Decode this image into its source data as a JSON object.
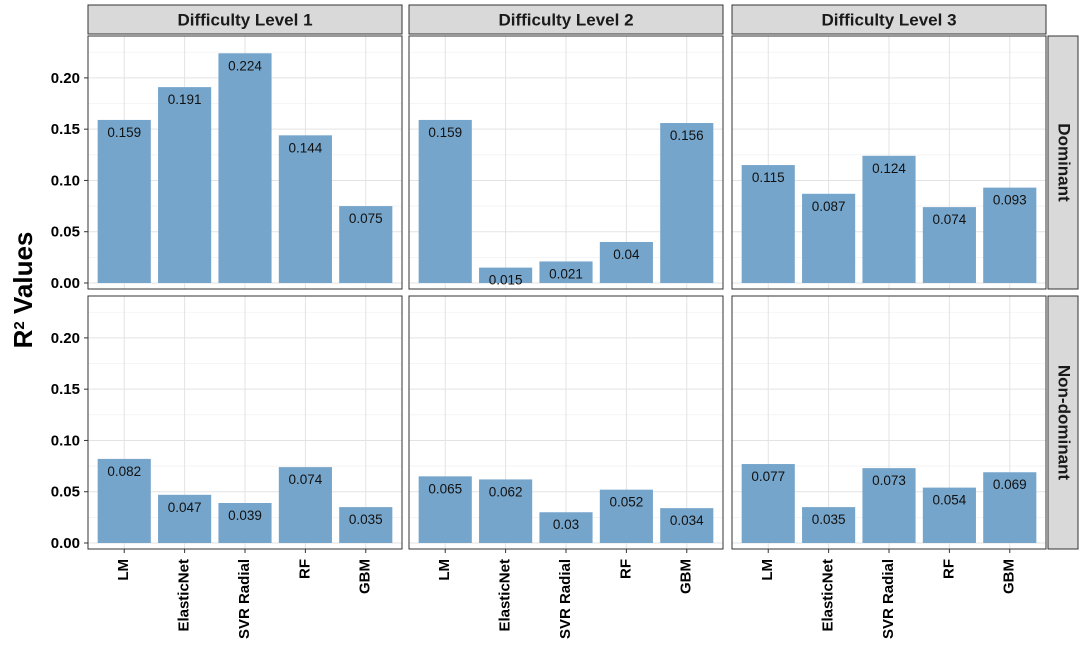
{
  "chart_data": {
    "type": "bar",
    "ylabel_main": "R",
    "ylabel_sup": "2",
    "ylabel_rest": " Values",
    "xlabel": "",
    "ylim": [
      0,
      0.235
    ],
    "yticks": [
      0.0,
      0.05,
      0.1,
      0.15,
      0.2
    ],
    "ytick_labels": [
      "0.00",
      "0.05",
      "0.10",
      "0.15",
      "0.20"
    ],
    "categories": [
      "LM",
      "ElasticNet",
      "SVR Radial",
      "RF",
      "GBM"
    ],
    "columns": [
      "Difficulty Level 1",
      "Difficulty Level 2",
      "Difficulty Level 3"
    ],
    "rows": [
      "Dominant",
      "Non-dominant"
    ],
    "bar_color": "#76a5cb",
    "strip_color": "#d9d9d9",
    "panels": [
      {
        "row": "Dominant",
        "column": "Difficulty Level 1",
        "values": [
          0.159,
          0.191,
          0.224,
          0.144,
          0.075
        ],
        "labels": [
          "0.159",
          "0.191",
          "0.224",
          "0.144",
          "0.075"
        ]
      },
      {
        "row": "Dominant",
        "column": "Difficulty Level 2",
        "values": [
          0.159,
          0.015,
          0.021,
          0.04,
          0.156
        ],
        "labels": [
          "0.159",
          "0.015",
          "0.021",
          "0.04",
          "0.156"
        ]
      },
      {
        "row": "Dominant",
        "column": "Difficulty Level 3",
        "values": [
          0.115,
          0.087,
          0.124,
          0.074,
          0.093
        ],
        "labels": [
          "0.115",
          "0.087",
          "0.124",
          "0.074",
          "0.093"
        ]
      },
      {
        "row": "Non-dominant",
        "column": "Difficulty Level 1",
        "values": [
          0.082,
          0.047,
          0.039,
          0.074,
          0.035
        ],
        "labels": [
          "0.082",
          "0.047",
          "0.039",
          "0.074",
          "0.035"
        ]
      },
      {
        "row": "Non-dominant",
        "column": "Difficulty Level 2",
        "values": [
          0.065,
          0.062,
          0.03,
          0.052,
          0.034
        ],
        "labels": [
          "0.065",
          "0.062",
          "0.03",
          "0.052",
          "0.034"
        ]
      },
      {
        "row": "Non-dominant",
        "column": "Difficulty Level 3",
        "values": [
          0.077,
          0.035,
          0.073,
          0.054,
          0.069
        ],
        "labels": [
          "0.077",
          "0.035",
          "0.073",
          "0.054",
          "0.069"
        ]
      }
    ]
  }
}
